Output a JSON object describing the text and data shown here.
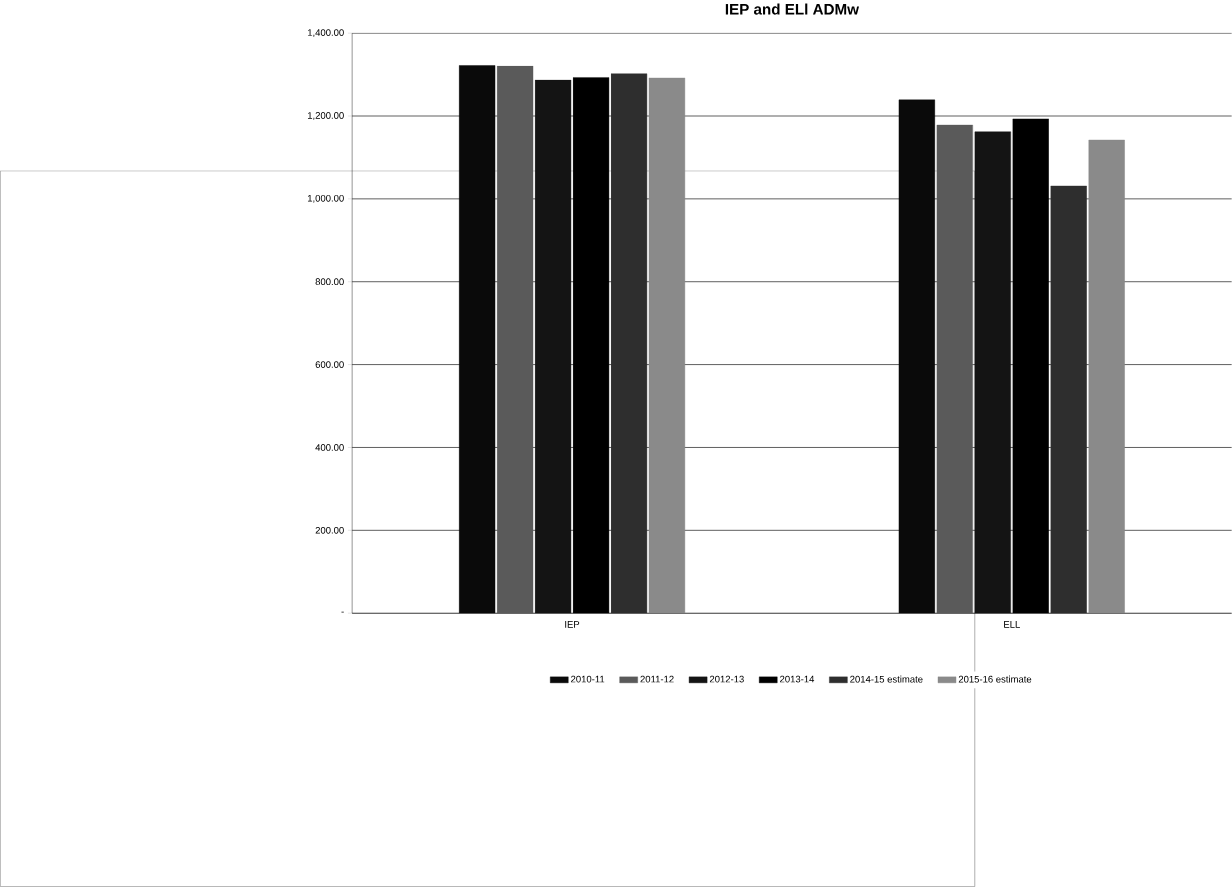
{
  "chart_data": {
    "type": "bar",
    "title": "IEP and ELl ADMw",
    "categories": [
      "IEP",
      "ELL"
    ],
    "series": [
      {
        "name": "2010-11",
        "color": "#0a0a0a",
        "values": [
          1322,
          1239
        ]
      },
      {
        "name": "2011-12",
        "color": "#5a5a5a",
        "values": [
          1321,
          1178
        ]
      },
      {
        "name": "2012-13",
        "color": "#141414",
        "values": [
          1287,
          1162
        ]
      },
      {
        "name": "2013-14",
        "color": "#000000",
        "values": [
          1293,
          1193
        ]
      },
      {
        "name": "2014-15 estimate",
        "color": "#2e2e2e",
        "values": [
          1302,
          1031
        ]
      },
      {
        "name": "2015-16 estimate",
        "color": "#8a8a8a",
        "values": [
          1292,
          1142
        ]
      }
    ],
    "ylim": [
      0,
      1400
    ],
    "yticks": [
      {
        "value": 0,
        "label": "-"
      },
      {
        "value": 200,
        "label": "200.00"
      },
      {
        "value": 400,
        "label": "400.00"
      },
      {
        "value": 600,
        "label": "600.00"
      },
      {
        "value": 800,
        "label": "800.00"
      },
      {
        "value": 1000,
        "label": "1,000.00"
      },
      {
        "value": 1200,
        "label": "1,200.00"
      },
      {
        "value": 1400,
        "label": "1,400.00"
      }
    ],
    "grid": "y",
    "legend": "bottom"
  }
}
